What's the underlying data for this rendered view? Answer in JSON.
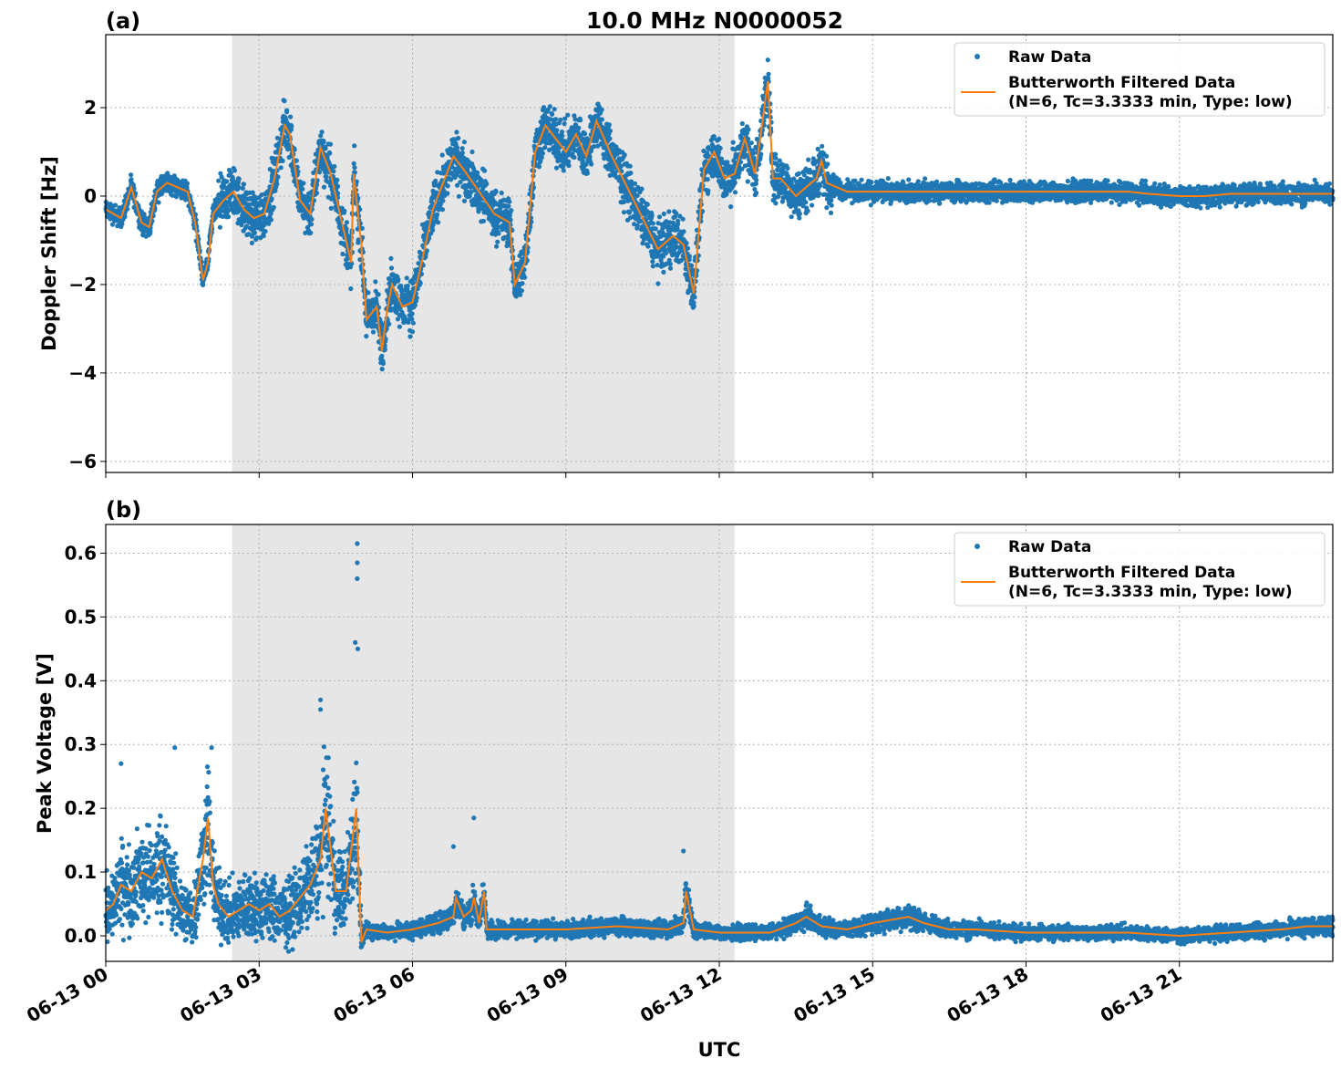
{
  "figure": {
    "title": "10.0 MHz N0000052",
    "xlabel": "UTC"
  },
  "chart_data": [
    {
      "type": "scatter",
      "panel_label": "(a)",
      "ylabel": "Doppler Shift [Hz]",
      "ylim": [
        -6.25,
        3.65
      ],
      "yticks": [
        2,
        0,
        -2,
        -4,
        -6
      ],
      "ytick_labels": [
        "2",
        "0",
        "−2",
        "−4",
        "−6"
      ],
      "xlim_hours": [
        0,
        24
      ],
      "x_unit": "hours UTC on 06-13",
      "shaded_region_hours": [
        2.47,
        12.3
      ],
      "grid": true,
      "legend_position": "top-right",
      "colors": {
        "raw": "#1f77b4",
        "filtered": "#ff7f0e",
        "shade": "#e6e6e6"
      },
      "series": [
        {
          "name": "Raw Data",
          "style": "points"
        },
        {
          "name": "Butterworth Filtered Data",
          "name_line2": "(N=6, Tc=3.3333 min, Type: low)",
          "style": "line",
          "x": [
            0,
            0.3,
            0.5,
            0.7,
            0.85,
            1.0,
            1.2,
            1.4,
            1.6,
            1.75,
            1.9,
            2.0,
            2.1,
            2.3,
            2.5,
            2.7,
            2.9,
            3.1,
            3.3,
            3.5,
            3.6,
            3.8,
            4.0,
            4.2,
            4.4,
            4.6,
            4.8,
            4.85,
            5.0,
            5.1,
            5.3,
            5.4,
            5.5,
            5.6,
            5.8,
            6.0,
            6.2,
            6.4,
            6.6,
            6.8,
            7.0,
            7.3,
            7.6,
            7.9,
            8.0,
            8.2,
            8.4,
            8.6,
            8.8,
            9.0,
            9.2,
            9.4,
            9.6,
            9.9,
            10.2,
            10.5,
            10.8,
            11.1,
            11.3,
            11.5,
            11.7,
            11.9,
            12.1,
            12.3,
            12.5,
            12.7,
            12.8,
            12.95,
            13.05,
            13.2,
            13.5,
            13.7,
            13.9,
            14.0,
            14.1,
            14.5,
            15.0,
            16.0,
            17.0,
            18.0,
            19.0,
            20.0,
            20.4,
            21.0,
            21.5,
            22.0,
            23.0,
            24.0
          ],
          "y": [
            -0.3,
            -0.5,
            0.2,
            -0.6,
            -0.7,
            0.1,
            0.3,
            0.2,
            0.1,
            -0.6,
            -1.9,
            -1.5,
            -0.4,
            -0.1,
            0.1,
            -0.3,
            -0.5,
            -0.4,
            0.4,
            1.6,
            1.4,
            -0.1,
            -0.4,
            1.1,
            0.5,
            -0.5,
            -1.5,
            0.5,
            -1.1,
            -2.8,
            -2.5,
            -3.5,
            -2.6,
            -2.0,
            -2.5,
            -2.4,
            -1.4,
            -0.3,
            0.3,
            0.9,
            0.6,
            0.1,
            -0.4,
            -0.6,
            -2.0,
            -1.5,
            1.0,
            1.6,
            1.3,
            1.0,
            1.4,
            0.9,
            1.7,
            0.9,
            0.2,
            -0.5,
            -1.2,
            -0.9,
            -1.1,
            -2.2,
            0.6,
            1.0,
            0.4,
            0.5,
            1.3,
            0.5,
            1.3,
            2.6,
            0.4,
            0.4,
            0.0,
            0.2,
            0.4,
            0.8,
            0.3,
            0.1,
            0.1,
            0.1,
            0.1,
            0.1,
            0.1,
            0.1,
            0.05,
            0.0,
            0.0,
            0.05,
            0.05,
            0.05
          ]
        }
      ]
    },
    {
      "type": "scatter",
      "panel_label": "(b)",
      "ylabel": "Peak Voltage [V]",
      "ylim": [
        -0.04,
        0.645
      ],
      "yticks": [
        0.6,
        0.5,
        0.4,
        0.3,
        0.2,
        0.1,
        0.0
      ],
      "ytick_labels": [
        "0.6",
        "0.5",
        "0.4",
        "0.3",
        "0.2",
        "0.1",
        "0.0"
      ],
      "xlim_hours": [
        0,
        24
      ],
      "x_unit": "hours UTC on 06-13",
      "xticks_hours": [
        0,
        3,
        6,
        9,
        12,
        15,
        18,
        21
      ],
      "xtick_labels": [
        "06-13 00",
        "06-13 03",
        "06-13 06",
        "06-13 09",
        "06-13 12",
        "06-13 15",
        "06-13 18",
        "06-13 21"
      ],
      "shaded_region_hours": [
        2.47,
        12.3
      ],
      "grid": true,
      "legend_position": "top-right",
      "colors": {
        "raw": "#1f77b4",
        "filtered": "#ff7f0e",
        "shade": "#e6e6e6"
      },
      "series": [
        {
          "name": "Raw Data",
          "style": "points",
          "outliers": [
            {
              "x": 4.92,
              "y": 0.615
            },
            {
              "x": 4.92,
              "y": 0.585
            },
            {
              "x": 4.92,
              "y": 0.56
            },
            {
              "x": 4.88,
              "y": 0.46
            },
            {
              "x": 4.93,
              "y": 0.45
            },
            {
              "x": 4.2,
              "y": 0.37
            },
            {
              "x": 4.2,
              "y": 0.355
            },
            {
              "x": 1.35,
              "y": 0.295
            },
            {
              "x": 2.07,
              "y": 0.295
            },
            {
              "x": 0.3,
              "y": 0.27
            },
            {
              "x": 7.2,
              "y": 0.185
            },
            {
              "x": 6.8,
              "y": 0.14
            },
            {
              "x": 11.3,
              "y": 0.133
            }
          ]
        },
        {
          "name": "Butterworth Filtered Data",
          "name_line2": "(N=6, Tc=3.3333 min, Type: low)",
          "style": "line",
          "x": [
            0,
            0.15,
            0.3,
            0.5,
            0.7,
            0.9,
            1.1,
            1.3,
            1.5,
            1.7,
            1.9,
            2.0,
            2.1,
            2.2,
            2.4,
            2.6,
            2.8,
            3.0,
            3.2,
            3.4,
            3.6,
            3.8,
            4.0,
            4.2,
            4.3,
            4.5,
            4.7,
            4.9,
            5.0,
            5.1,
            5.5,
            6.0,
            6.5,
            6.8,
            6.85,
            7.0,
            7.15,
            7.2,
            7.3,
            7.4,
            7.45,
            7.6,
            8.0,
            9.0,
            10.0,
            11.0,
            11.3,
            11.35,
            11.5,
            12.0,
            13.0,
            13.5,
            13.7,
            14.0,
            14.5,
            15.0,
            15.7,
            16.0,
            16.5,
            17.0,
            18.0,
            19.0,
            20.0,
            21.0,
            22.0,
            23.0,
            23.5,
            24.0
          ],
          "y": [
            0.04,
            0.05,
            0.08,
            0.07,
            0.1,
            0.09,
            0.12,
            0.07,
            0.04,
            0.03,
            0.12,
            0.185,
            0.08,
            0.05,
            0.03,
            0.04,
            0.05,
            0.04,
            0.05,
            0.03,
            0.04,
            0.06,
            0.08,
            0.12,
            0.2,
            0.07,
            0.07,
            0.2,
            -0.01,
            0.01,
            0.005,
            0.01,
            0.02,
            0.03,
            0.06,
            0.03,
            0.04,
            0.06,
            0.02,
            0.07,
            0.01,
            0.01,
            0.01,
            0.01,
            0.015,
            0.01,
            0.02,
            0.07,
            0.01,
            0.005,
            0.005,
            0.02,
            0.03,
            0.015,
            0.01,
            0.02,
            0.03,
            0.02,
            0.01,
            0.01,
            0.005,
            0.005,
            0.005,
            0.0,
            0.005,
            0.01,
            0.015,
            0.015
          ]
        }
      ]
    }
  ]
}
